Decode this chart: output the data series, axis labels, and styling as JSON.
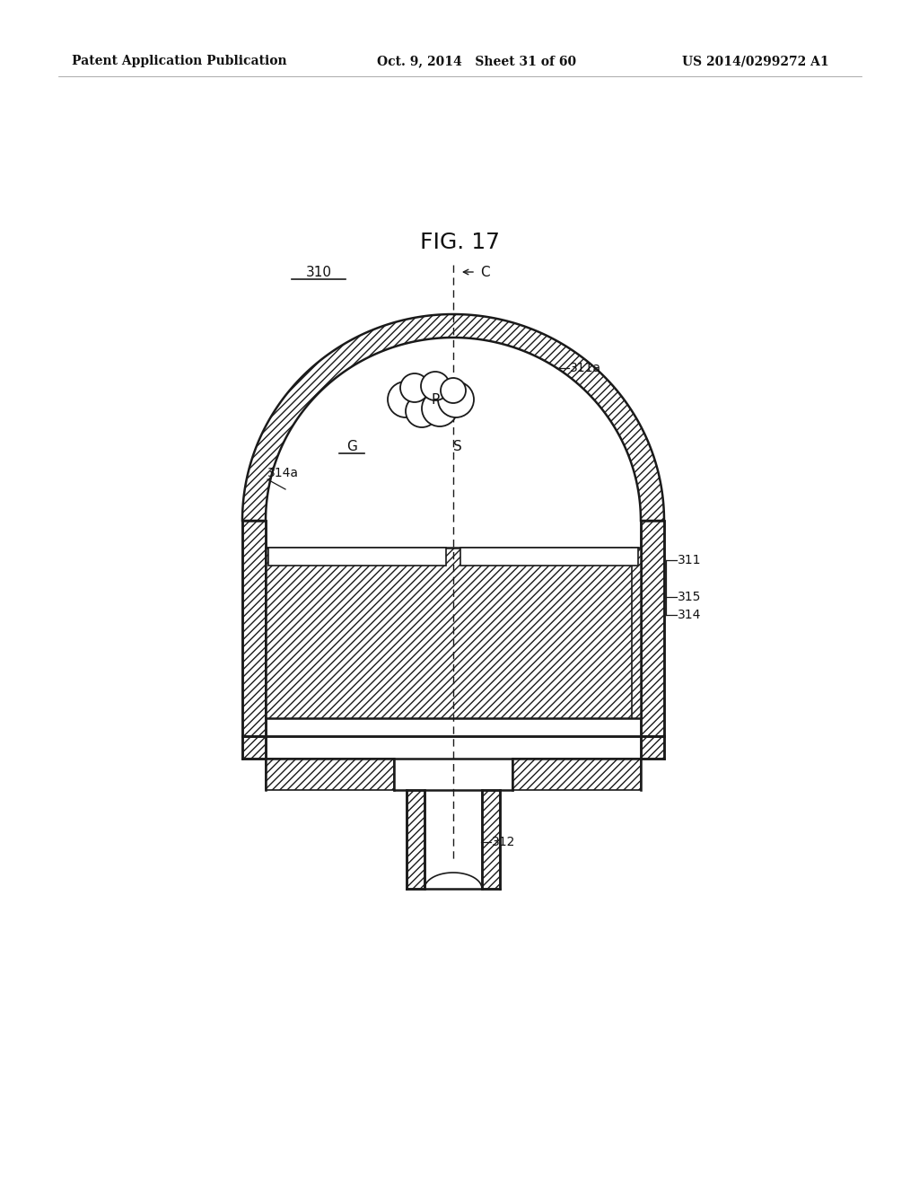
{
  "bg_color": "#ffffff",
  "line_color": "#1a1a1a",
  "fig_title": "FIG. 17",
  "header_left": "Patent Application Publication",
  "header_center": "Oct. 9, 2014   Sheet 31 of 60",
  "header_right": "US 2014/0299272 A1"
}
